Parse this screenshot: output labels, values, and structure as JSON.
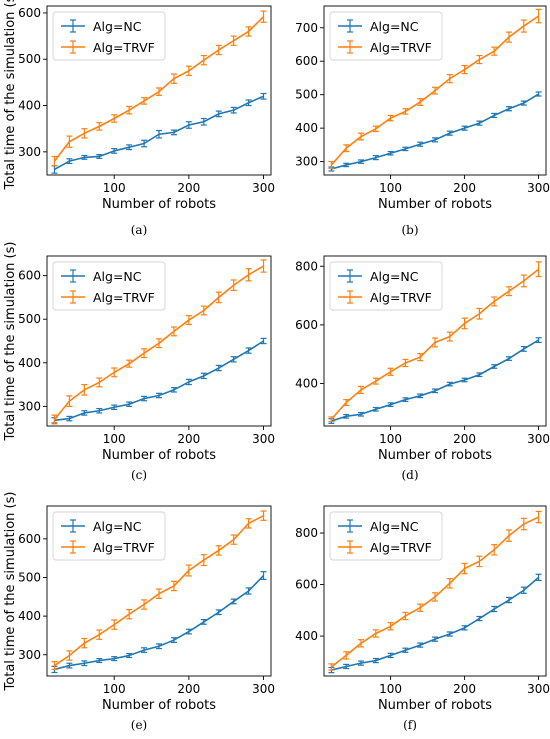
{
  "colors": {
    "nc": "#1f77b4",
    "trvf": "#ff7f0e"
  },
  "chart_data": [
    {
      "type": "line",
      "caption": "(a)",
      "xlabel": "Number of robots",
      "ylabel": "Total time of the simulation (s)",
      "xlim": [
        10,
        310
      ],
      "ylim": [
        250,
        615
      ],
      "xticks": [
        100,
        200,
        300
      ],
      "yticks": [
        300,
        400,
        500,
        600
      ],
      "legend_position": "top-left",
      "x": [
        20,
        40,
        60,
        80,
        100,
        120,
        140,
        160,
        180,
        200,
        220,
        240,
        260,
        280,
        300
      ],
      "series": [
        {
          "name": "Alg=NC",
          "values": [
            262,
            280,
            288,
            290,
            302,
            310,
            318,
            338,
            342,
            358,
            365,
            382,
            390,
            406,
            420
          ],
          "errors": [
            8,
            5,
            4,
            4,
            5,
            5,
            7,
            8,
            5,
            7,
            7,
            6,
            6,
            6,
            6
          ]
        },
        {
          "name": "Alg=TRVF",
          "values": [
            280,
            322,
            340,
            355,
            372,
            390,
            410,
            430,
            458,
            475,
            498,
            520,
            540,
            560,
            592
          ],
          "errors": [
            10,
            12,
            10,
            8,
            8,
            8,
            7,
            8,
            10,
            10,
            10,
            10,
            10,
            10,
            12
          ]
        }
      ]
    },
    {
      "type": "line",
      "caption": "(b)",
      "xlabel": "Number of robots",
      "ylabel": "",
      "xlim": [
        10,
        310
      ],
      "ylim": [
        260,
        765
      ],
      "xticks": [
        100,
        200,
        300
      ],
      "yticks": [
        300,
        400,
        500,
        600,
        700
      ],
      "legend_position": "top-left",
      "x": [
        20,
        40,
        60,
        80,
        100,
        120,
        140,
        160,
        180,
        200,
        220,
        240,
        260,
        280,
        300
      ],
      "series": [
        {
          "name": "Alg=NC",
          "values": [
            278,
            290,
            300,
            312,
            325,
            338,
            352,
            365,
            385,
            400,
            415,
            438,
            458,
            475,
            502
          ],
          "errors": [
            6,
            5,
            5,
            6,
            5,
            5,
            6,
            6,
            6,
            6,
            6,
            6,
            6,
            6,
            6
          ]
        },
        {
          "name": "Alg=TRVF",
          "values": [
            290,
            340,
            375,
            398,
            430,
            450,
            478,
            512,
            548,
            575,
            605,
            630,
            672,
            705,
            735
          ],
          "errors": [
            10,
            10,
            10,
            8,
            8,
            8,
            10,
            10,
            12,
            12,
            12,
            12,
            15,
            18,
            20
          ]
        }
      ]
    },
    {
      "type": "line",
      "caption": "(c)",
      "xlabel": "Number of robots",
      "ylabel": "Total time of the simulation (s)",
      "xlim": [
        10,
        310
      ],
      "ylim": [
        255,
        645
      ],
      "xticks": [
        100,
        200,
        300
      ],
      "yticks": [
        300,
        400,
        500,
        600
      ],
      "legend_position": "top-left",
      "x": [
        20,
        40,
        60,
        80,
        100,
        120,
        140,
        160,
        180,
        200,
        220,
        240,
        260,
        280,
        300
      ],
      "series": [
        {
          "name": "Alg=NC",
          "values": [
            268,
            272,
            285,
            290,
            298,
            305,
            318,
            325,
            338,
            356,
            370,
            388,
            408,
            428,
            450
          ],
          "errors": [
            6,
            5,
            5,
            5,
            5,
            5,
            5,
            5,
            5,
            6,
            6,
            6,
            6,
            6,
            6
          ]
        },
        {
          "name": "Alg=TRVF",
          "values": [
            270,
            312,
            338,
            355,
            378,
            398,
            422,
            445,
            472,
            498,
            520,
            550,
            578,
            602,
            622
          ],
          "errors": [
            10,
            12,
            12,
            10,
            10,
            8,
            10,
            10,
            10,
            10,
            10,
            12,
            12,
            14,
            14
          ]
        }
      ]
    },
    {
      "type": "line",
      "caption": "(d)",
      "xlabel": "Number of robots",
      "ylabel": "",
      "xlim": [
        10,
        310
      ],
      "ylim": [
        255,
        835
      ],
      "xticks": [
        100,
        200,
        300
      ],
      "yticks": [
        400,
        600,
        800
      ],
      "legend_position": "top-left",
      "x": [
        20,
        40,
        60,
        80,
        100,
        120,
        140,
        160,
        180,
        200,
        220,
        240,
        260,
        280,
        300
      ],
      "series": [
        {
          "name": "Alg=NC",
          "values": [
            272,
            288,
            295,
            312,
            328,
            345,
            358,
            375,
            398,
            412,
            430,
            458,
            485,
            518,
            548
          ],
          "errors": [
            8,
            6,
            6,
            6,
            6,
            6,
            6,
            6,
            6,
            6,
            6,
            6,
            6,
            8,
            8
          ]
        },
        {
          "name": "Alg=TRVF",
          "values": [
            278,
            335,
            378,
            408,
            440,
            470,
            490,
            540,
            560,
            605,
            638,
            680,
            715,
            750,
            790
          ],
          "errors": [
            8,
            10,
            12,
            10,
            12,
            12,
            12,
            15,
            15,
            18,
            18,
            15,
            15,
            20,
            25
          ]
        }
      ]
    },
    {
      "type": "line",
      "caption": "(e)",
      "xlabel": "Number of robots",
      "ylabel": "Total time of the simulation (s)",
      "xlim": [
        10,
        310
      ],
      "ylim": [
        245,
        685
      ],
      "xticks": [
        100,
        200,
        300
      ],
      "yticks": [
        300,
        400,
        500,
        600
      ],
      "legend_position": "top-left",
      "x": [
        20,
        40,
        60,
        80,
        100,
        120,
        140,
        160,
        180,
        200,
        220,
        240,
        260,
        280,
        300
      ],
      "series": [
        {
          "name": "Alg=NC",
          "values": [
            262,
            272,
            278,
            285,
            290,
            298,
            312,
            322,
            338,
            360,
            385,
            410,
            438,
            465,
            505
          ],
          "errors": [
            8,
            6,
            6,
            5,
            5,
            5,
            6,
            6,
            6,
            6,
            6,
            6,
            6,
            8,
            10
          ]
        },
        {
          "name": "Alg=TRVF",
          "values": [
            272,
            298,
            330,
            352,
            378,
            405,
            430,
            458,
            478,
            518,
            545,
            570,
            598,
            640,
            660
          ],
          "errors": [
            10,
            12,
            12,
            12,
            12,
            12,
            12,
            12,
            12,
            14,
            14,
            12,
            12,
            12,
            12
          ]
        }
      ]
    },
    {
      "type": "line",
      "caption": "(f)",
      "xlabel": "Number of robots",
      "ylabel": "",
      "xlim": [
        10,
        310
      ],
      "ylim": [
        245,
        905
      ],
      "xticks": [
        100,
        200,
        300
      ],
      "yticks": [
        400,
        600,
        800
      ],
      "legend_position": "top-left",
      "x": [
        20,
        40,
        60,
        80,
        100,
        120,
        140,
        160,
        180,
        200,
        220,
        240,
        260,
        280,
        300
      ],
      "series": [
        {
          "name": "Alg=NC",
          "values": [
            268,
            282,
            295,
            305,
            325,
            345,
            365,
            388,
            408,
            432,
            468,
            505,
            540,
            578,
            628
          ],
          "errors": [
            10,
            8,
            8,
            8,
            8,
            8,
            8,
            8,
            8,
            8,
            8,
            10,
            10,
            12,
            12
          ]
        },
        {
          "name": "Alg=TRVF",
          "values": [
            280,
            325,
            372,
            410,
            438,
            478,
            510,
            552,
            605,
            662,
            690,
            735,
            790,
            835,
            862
          ],
          "errors": [
            12,
            14,
            14,
            14,
            14,
            14,
            14,
            16,
            18,
            20,
            20,
            20,
            22,
            22,
            22
          ]
        }
      ]
    }
  ]
}
